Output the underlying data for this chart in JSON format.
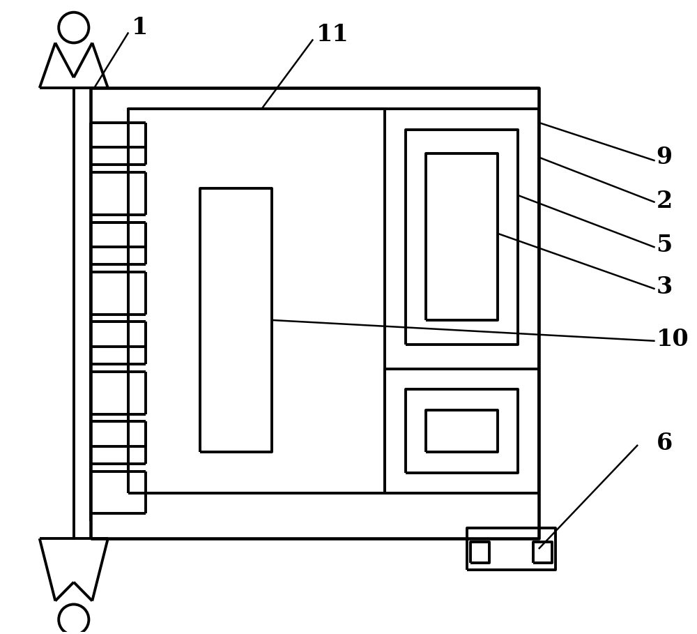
{
  "bg_color": "#ffffff",
  "line_color": "#000000",
  "lw_main": 2.8,
  "lw_thin": 1.8,
  "fig_width": 10.0,
  "fig_height": 9.09,
  "label_fontsize": 24
}
